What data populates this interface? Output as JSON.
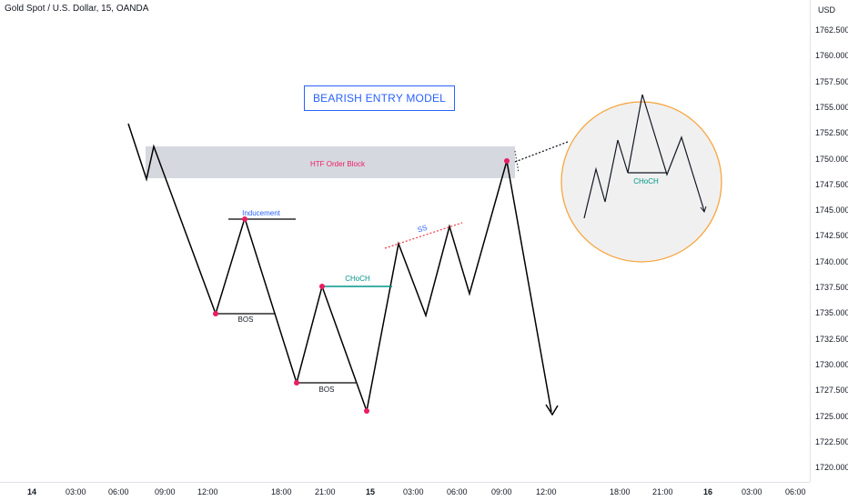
{
  "header": {
    "symbol": "Gold Spot / U.S. Dollar, 15, OANDA"
  },
  "price_axis": {
    "currency": "USD",
    "ticks": [
      "1762.500",
      "1760.000",
      "1757.500",
      "1755.000",
      "1752.500",
      "1750.000",
      "1747.500",
      "1745.000",
      "1742.500",
      "1740.000",
      "1737.500",
      "1735.000",
      "1732.500",
      "1730.000",
      "1727.500",
      "1725.000",
      "1722.500",
      "1720.000"
    ]
  },
  "time_axis": {
    "ticks": [
      {
        "label": "14",
        "bold": true
      },
      {
        "label": "03:00",
        "bold": false
      },
      {
        "label": "06:00",
        "bold": false
      },
      {
        "label": "09:00",
        "bold": false
      },
      {
        "label": "12:00",
        "bold": false
      },
      {
        "label": "18:00",
        "bold": false
      },
      {
        "label": "21:00",
        "bold": false
      },
      {
        "label": "15",
        "bold": true
      },
      {
        "label": "03:00",
        "bold": false
      },
      {
        "label": "06:00",
        "bold": false
      },
      {
        "label": "09:00",
        "bold": false
      },
      {
        "label": "12:00",
        "bold": false
      },
      {
        "label": "18:00",
        "bold": false
      },
      {
        "label": "21:00",
        "bold": false
      },
      {
        "label": "16",
        "bold": true
      },
      {
        "label": "03:00",
        "bold": false
      },
      {
        "label": "06:00",
        "bold": false
      }
    ]
  },
  "annotations": {
    "title": "BEARISH ENTRY MODEL",
    "order_block": "HTF Order Block",
    "inducement": "Inducement",
    "bos_1": "BOS",
    "bos_2": "BOS",
    "choch": "CHoCH",
    "ss": "SS",
    "inset_choch": "CHoCH"
  },
  "colors": {
    "accent_blue": "#2962ff",
    "order_block_fill": "#d1d4dc",
    "order_block_text": "#e91e63",
    "choch": "#009688",
    "ss_line": "#f23645",
    "pivot_dot": "#e91e63",
    "inset_border": "#f7a53f",
    "inset_fill": "#f0f0f0"
  }
}
